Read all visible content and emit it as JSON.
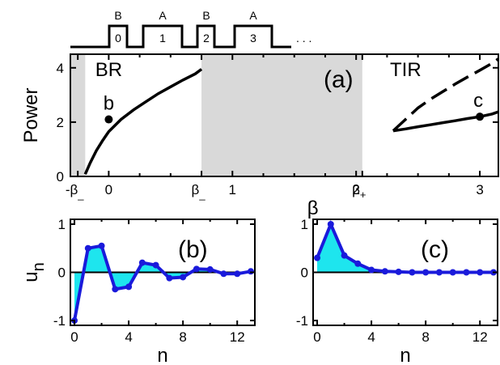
{
  "schematic": {
    "layer_labels": [
      "B",
      "A",
      "B",
      "A"
    ],
    "site_labels": [
      "0",
      "1",
      "2",
      "3"
    ],
    "ellipsis": ". . ."
  },
  "chart_data": [
    {
      "id": "a",
      "type": "line",
      "panel_label": "(a)",
      "xlabel": "β",
      "ylabel": "Power",
      "xlim": [
        -0.31,
        3.15
      ],
      "ylim": [
        0,
        4.5
      ],
      "x_ticks": [
        {
          "value": -0.25,
          "label": "-β"
        },
        {
          "value": 0,
          "label": "0"
        },
        {
          "value": 0.25,
          "label": ""
        },
        {
          "value": 0.5,
          "label": ""
        },
        {
          "value": 0.75,
          "label": "β"
        },
        {
          "value": 1,
          "label": "1"
        },
        {
          "value": 1.25,
          "label": ""
        },
        {
          "value": 1.5,
          "label": ""
        },
        {
          "value": 1.75,
          "label": ""
        },
        {
          "value": 2,
          "label": "2"
        },
        {
          "value": 2.05,
          "label": "β"
        },
        {
          "value": 2.25,
          "label": ""
        },
        {
          "value": 2.5,
          "label": ""
        },
        {
          "value": 2.75,
          "label": ""
        },
        {
          "value": 3,
          "label": "3"
        }
      ],
      "x_tick_subscripts": {
        "-0.25": "_",
        "0.75": "_",
        "2.05": "+"
      },
      "y_ticks": [
        0,
        2,
        4
      ],
      "shaded_bands": [
        [
          -0.31,
          -0.19
        ],
        [
          0.75,
          2.05
        ]
      ],
      "region_labels": [
        {
          "text": "BR",
          "x": 0.0,
          "y": 3.7
        },
        {
          "text": "TIR",
          "x": 2.4,
          "y": 3.7
        }
      ],
      "series": [
        {
          "style": "solid",
          "x": [
            -0.19,
            -0.15,
            -0.1,
            -0.05,
            0.0,
            0.1,
            0.2,
            0.3,
            0.4,
            0.5,
            0.6,
            0.7,
            0.75
          ],
          "y": [
            0.08,
            0.5,
            0.95,
            1.32,
            1.65,
            2.1,
            2.45,
            2.75,
            3.05,
            3.3,
            3.55,
            3.78,
            3.95
          ]
        },
        {
          "style": "solid",
          "x": [
            2.3,
            2.4,
            2.5,
            2.6,
            2.7,
            2.8,
            2.9,
            3.0,
            3.1,
            3.15
          ],
          "y": [
            1.68,
            1.75,
            1.83,
            1.9,
            1.98,
            2.05,
            2.13,
            2.2,
            2.3,
            2.38
          ]
        },
        {
          "style": "dashed",
          "x": [
            2.3,
            2.4,
            2.5,
            2.6,
            2.7,
            2.8,
            2.9,
            3.0,
            3.1,
            3.15
          ],
          "y": [
            1.68,
            2.1,
            2.52,
            2.84,
            3.12,
            3.4,
            3.66,
            3.91,
            4.17,
            4.33
          ]
        }
      ],
      "points": [
        {
          "label": "b",
          "x": 0.0,
          "y": 2.1
        },
        {
          "label": "c",
          "x": 3.0,
          "y": 2.2
        }
      ]
    },
    {
      "id": "b",
      "type": "line",
      "panel_label": "(b)",
      "xlabel": "n",
      "ylabel": "u",
      "ylabel_subscript": "n",
      "xlim": [
        -0.3,
        13.3
      ],
      "ylim": [
        -1.1,
        1.1
      ],
      "x_ticks": [
        0,
        4,
        8,
        12
      ],
      "y_ticks": [
        -1,
        0,
        1
      ],
      "x": [
        0,
        1,
        2,
        3,
        4,
        5,
        6,
        7,
        8,
        9,
        10,
        11,
        12,
        13
      ],
      "y": [
        -1.0,
        0.5,
        0.55,
        -0.35,
        -0.3,
        0.2,
        0.15,
        -0.12,
        -0.1,
        0.07,
        0.06,
        -0.03,
        -0.03,
        0.02
      ]
    },
    {
      "id": "c",
      "type": "line",
      "panel_label": "(c)",
      "xlabel": "n",
      "ylabel": "",
      "xlim": [
        -0.3,
        13.3
      ],
      "ylim": [
        -1.1,
        1.1
      ],
      "x_ticks": [
        0,
        4,
        8,
        12
      ],
      "y_ticks": [
        -1,
        0,
        1
      ],
      "x": [
        0,
        1,
        2,
        3,
        4,
        5,
        6,
        7,
        8,
        9,
        10,
        11,
        12,
        13
      ],
      "y": [
        0.3,
        1.0,
        0.35,
        0.18,
        0.05,
        0.02,
        0.01,
        0.0,
        0.0,
        0.0,
        0.0,
        0.0,
        0.0,
        0.0
      ]
    }
  ],
  "colors": {
    "shade": "#d9d9d9",
    "main_line": "#000000",
    "lattice_line": "#1a1adb",
    "fill": "#1ee5ee"
  }
}
